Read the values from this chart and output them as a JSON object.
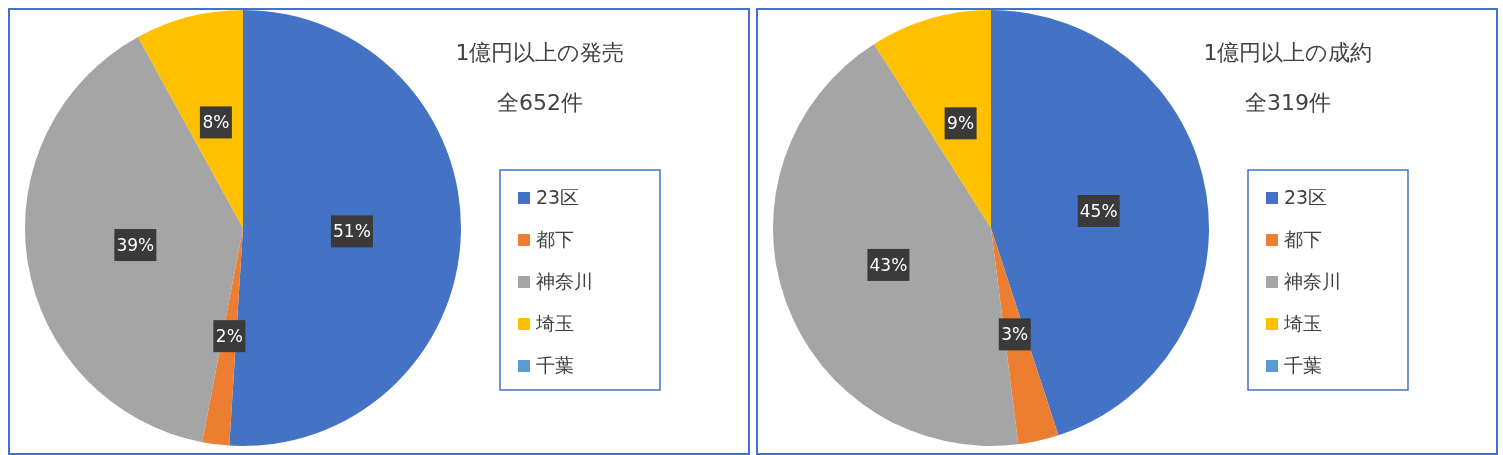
{
  "chart_data": [
    {
      "type": "pie",
      "title": "1億円以上の発売",
      "subtitle": "全652件",
      "categories": [
        "23区",
        "都下",
        "神奈川",
        "埼玉",
        "千葉"
      ],
      "values": [
        51,
        2,
        39,
        8,
        0
      ],
      "colors": [
        "#4472c4",
        "#ed7d31",
        "#a5a5a5",
        "#ffc000",
        "#5b9bd5"
      ],
      "value_labels": [
        "51%",
        "2%",
        "39%",
        "8%",
        null
      ],
      "legend": "right"
    },
    {
      "type": "pie",
      "title": "1億円以上の成約",
      "subtitle": "全319件",
      "categories": [
        "23区",
        "都下",
        "神奈川",
        "埼玉",
        "千葉"
      ],
      "values": [
        45,
        3,
        43,
        9,
        0
      ],
      "colors": [
        "#4472c4",
        "#ed7d31",
        "#a5a5a5",
        "#ffc000",
        "#5b9bd5"
      ],
      "value_labels": [
        "45%",
        "3%",
        "43%",
        "9%",
        null
      ],
      "legend": "right"
    }
  ]
}
